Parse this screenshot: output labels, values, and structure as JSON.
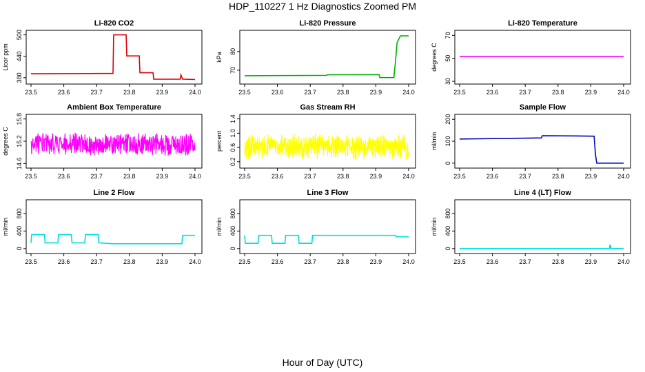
{
  "figure": {
    "title": "HDP_110227  1 Hz Diagnostics Zoomed PM",
    "xlabel": "Hour of Day (UTC)"
  },
  "chart_data": [
    {
      "type": "line",
      "title": "Li-820 CO2",
      "ylabel": "Licor ppm",
      "color": "#e00000",
      "xlim": [
        23.5,
        24.0
      ],
      "ylim": [
        370,
        505
      ],
      "xticks": [
        "23.5",
        "23.6",
        "23.7",
        "23.8",
        "23.9",
        "24.0"
      ],
      "yticks": [
        380,
        440,
        500
      ],
      "x": [
        23.5,
        23.75,
        23.752,
        23.79,
        23.792,
        23.83,
        23.832,
        23.872,
        23.874,
        23.955,
        23.957,
        23.962,
        23.964,
        24.0
      ],
      "y": [
        391,
        392,
        500,
        500,
        441,
        441,
        394,
        394,
        376,
        376,
        388,
        376,
        376,
        375
      ]
    },
    {
      "type": "line",
      "title": "Li-820 Pressure",
      "ylabel": "kPa",
      "color": "#00b000",
      "xlim": [
        23.5,
        24.0
      ],
      "ylim": [
        64,
        90
      ],
      "xticks": [
        "23.5",
        "23.6",
        "23.7",
        "23.8",
        "23.9",
        "24.0"
      ],
      "yticks": [
        70,
        80
      ],
      "x": [
        23.5,
        23.75,
        23.752,
        23.91,
        23.912,
        23.955,
        23.96,
        23.965,
        23.975,
        24.0
      ],
      "y": [
        67.0,
        67.2,
        67.5,
        67.6,
        66.0,
        66.0,
        75,
        85,
        88.5,
        88.5
      ]
    },
    {
      "type": "line",
      "title": "Li-820 Temperature",
      "ylabel": "degrees C",
      "color": "#ff00ff",
      "xlim": [
        23.5,
        24.0
      ],
      "ylim": [
        30,
        72
      ],
      "xticks": [
        "23.5",
        "23.6",
        "23.7",
        "23.8",
        "23.9",
        "24.0"
      ],
      "yticks": [
        30,
        50,
        70
      ],
      "x": [
        23.5,
        24.0
      ],
      "y": [
        51.5,
        51.5
      ]
    },
    {
      "type": "line",
      "title": "Ambient Box Temperature",
      "ylabel": "degrees C",
      "color": "#ff00ff",
      "xlim": [
        23.5,
        24.0
      ],
      "ylim": [
        14.55,
        15.85
      ],
      "xticks": [
        "23.5",
        "23.6",
        "23.7",
        "23.8",
        "23.9",
        "24.0"
      ],
      "yticks": [
        "14.6",
        "15.2",
        "15.8"
      ],
      "noise": {
        "center": 15.12,
        "amp": 0.26,
        "min": 14.58,
        "max": 15.78
      }
    },
    {
      "type": "line",
      "title": "Gas Stream RH",
      "ylabel": "percent",
      "color": "#ffff00",
      "xlim": [
        23.5,
        24.0
      ],
      "ylim": [
        0.1,
        1.45
      ],
      "xticks": [
        "23.5",
        "23.6",
        "23.7",
        "23.8",
        "23.9",
        "24.0"
      ],
      "yticks": [
        "0.2",
        "0.6",
        "1.0",
        "1.4"
      ],
      "noise": {
        "center": 0.62,
        "amp": 0.3,
        "min": 0.22,
        "max": 1.38
      }
    },
    {
      "type": "line",
      "title": "Sample Flow",
      "ylabel": "ml/min",
      "color": "#0000c0",
      "xlim": [
        23.5,
        24.0
      ],
      "ylim": [
        -10,
        210
      ],
      "xticks": [
        "23.5",
        "23.6",
        "23.7",
        "23.8",
        "23.9",
        "24.0"
      ],
      "yticks": [
        0,
        100,
        200
      ],
      "x": [
        23.5,
        23.6,
        23.7,
        23.749,
        23.752,
        23.85,
        23.91,
        23.914,
        23.918,
        23.95,
        24.0
      ],
      "y": [
        110,
        112,
        114,
        115,
        125,
        124,
        123,
        40,
        0,
        0,
        0
      ]
    },
    {
      "type": "line",
      "title": "Line 2 Flow",
      "ylabel": "ml/min",
      "color": "#00e0e0",
      "xlim": [
        23.5,
        24.0
      ],
      "ylim": [
        -50,
        1050
      ],
      "xticks": [
        "23.5",
        "23.6",
        "23.7",
        "23.8",
        "23.9",
        "24.0"
      ],
      "yticks": [
        0,
        400,
        800
      ],
      "x": [
        23.5,
        23.502,
        23.541,
        23.543,
        23.582,
        23.584,
        23.623,
        23.625,
        23.664,
        23.666,
        23.705,
        23.707,
        23.75,
        23.96,
        23.962,
        24.0
      ],
      "y": [
        130,
        320,
        320,
        130,
        130,
        320,
        320,
        130,
        130,
        320,
        320,
        130,
        110,
        110,
        300,
        300
      ]
    },
    {
      "type": "line",
      "title": "Line 3 Flow",
      "ylabel": "ml/min",
      "color": "#00e0e0",
      "xlim": [
        23.5,
        24.0
      ],
      "ylim": [
        -50,
        1050
      ],
      "xticks": [
        "23.5",
        "23.6",
        "23.7",
        "23.8",
        "23.9",
        "24.0"
      ],
      "yticks": [
        0,
        400,
        800
      ],
      "x": [
        23.5,
        23.502,
        23.541,
        23.543,
        23.582,
        23.584,
        23.623,
        23.625,
        23.664,
        23.666,
        23.705,
        23.707,
        23.96,
        23.962,
        24.0
      ],
      "y": [
        300,
        120,
        120,
        300,
        300,
        120,
        120,
        300,
        300,
        120,
        120,
        300,
        300,
        270,
        270
      ]
    },
    {
      "type": "line",
      "title": "Line 4 (LT) Flow",
      "ylabel": "ml/min",
      "color": "#00e0e0",
      "xlim": [
        23.5,
        24.0
      ],
      "ylim": [
        -50,
        1050
      ],
      "xticks": [
        "23.5",
        "23.6",
        "23.7",
        "23.8",
        "23.9",
        "24.0"
      ],
      "yticks": [
        0,
        400,
        800
      ],
      "x": [
        23.5,
        23.957,
        23.958,
        23.959,
        23.96,
        23.961,
        24.0
      ],
      "y": [
        0,
        0,
        90,
        30,
        70,
        0,
        0
      ]
    }
  ]
}
